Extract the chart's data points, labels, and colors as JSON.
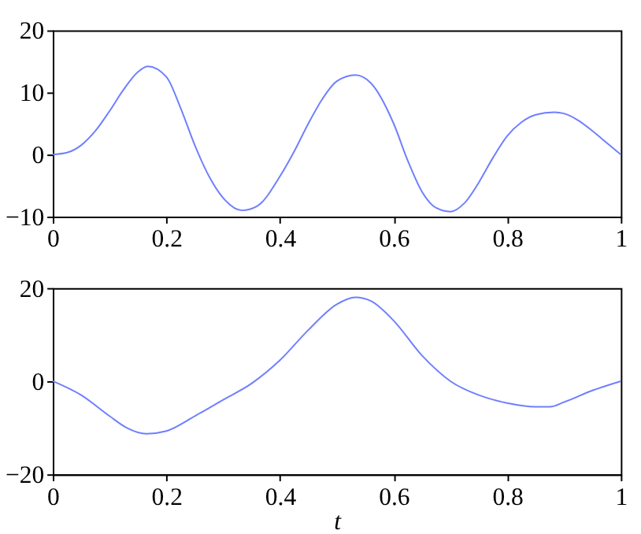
{
  "chart_data": [
    {
      "type": "line",
      "xlim": [
        0,
        1
      ],
      "xticks": [
        0,
        0.2,
        0.4,
        0.6,
        0.8,
        1
      ],
      "ylim": [
        -10,
        20
      ],
      "yticks": [
        -10,
        0,
        10,
        20
      ],
      "grid": false,
      "series": [
        {
          "color": "#6f7fff",
          "x": [
            0,
            0.025,
            0.05,
            0.075,
            0.1,
            0.125,
            0.15,
            0.167,
            0.2,
            0.225,
            0.25,
            0.275,
            0.3,
            0.333,
            0.36,
            0.4,
            0.425,
            0.45,
            0.475,
            0.5,
            0.533,
            0.56,
            0.6,
            0.625,
            0.65,
            0.675,
            0.7,
            0.725,
            0.75,
            0.775,
            0.8,
            0.825,
            0.85,
            0.883,
            0.9,
            0.925,
            0.95,
            0.975,
            1
          ],
          "values": [
            0,
            0.3,
            1.5,
            3.8,
            7,
            10.5,
            13.3,
            14.2,
            12.5,
            7.5,
            1.5,
            -3.5,
            -7,
            -9,
            -8.3,
            -3.5,
            0.5,
            5,
            9,
            11.8,
            12.8,
            11.5,
            5,
            -1,
            -6,
            -8.6,
            -9.2,
            -7.8,
            -4.5,
            -0.5,
            3,
            5.2,
            6.4,
            6.8,
            6.6,
            5.5,
            3.8,
            1.9,
            0
          ]
        }
      ]
    },
    {
      "type": "line",
      "xlabel": "t",
      "xlim": [
        0,
        1
      ],
      "xticks": [
        0,
        0.2,
        0.4,
        0.6,
        0.8,
        1
      ],
      "ylim": [
        -20,
        20
      ],
      "yticks": [
        -20,
        0,
        20
      ],
      "grid": false,
      "series": [
        {
          "color": "#6f7fff",
          "x": [
            0,
            0.05,
            0.1,
            0.13,
            0.165,
            0.2,
            0.25,
            0.3,
            0.35,
            0.4,
            0.45,
            0.5,
            0.533,
            0.56,
            0.6,
            0.65,
            0.7,
            0.75,
            0.8,
            0.85,
            0.875,
            0.9,
            0.95,
            1
          ],
          "values": [
            0,
            -3,
            -7.5,
            -10,
            -11.3,
            -10.7,
            -7.5,
            -4,
            -0.5,
            4.5,
            11,
            16.5,
            18,
            17.2,
            13,
            5.5,
            0,
            -3,
            -4.7,
            -5.5,
            -5.5,
            -4.5,
            -2,
            0
          ]
        }
      ]
    }
  ]
}
